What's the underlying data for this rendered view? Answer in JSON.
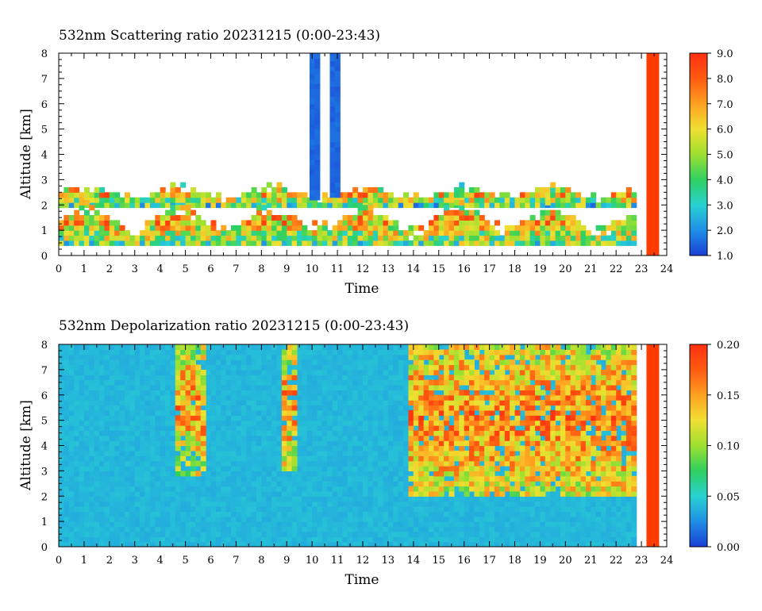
{
  "colors": {
    "scale": [
      "#1a3fd6",
      "#1f8fe6",
      "#28d2d2",
      "#2fd060",
      "#9ee030",
      "#f0e030",
      "#ffa020",
      "#ff5a10",
      "#ff3010"
    ],
    "background_fill": "#2f8fe6",
    "missing_data": "#ff3c00"
  },
  "chart_data": [
    {
      "type": "heatmap",
      "title": "532nm Scattering ratio  20231215 (0:00-23:43)",
      "xlabel": "Time",
      "ylabel": "Altitude [km]",
      "xlim": [
        0,
        24
      ],
      "ylim": [
        0,
        8
      ],
      "x_ticks": [
        "0",
        "1",
        "2",
        "3",
        "4",
        "5",
        "6",
        "7",
        "8",
        "9",
        "10",
        "11",
        "12",
        "13",
        "14",
        "15",
        "16",
        "17",
        "18",
        "19",
        "20",
        "21",
        "22",
        "23",
        "24"
      ],
      "y_ticks": [
        "0",
        "1",
        "2",
        "3",
        "4",
        "5",
        "6",
        "7",
        "8"
      ],
      "colorbar": {
        "min": 1.0,
        "max": 9.0,
        "ticks": [
          "1.0",
          "2.0",
          "3.0",
          "4.0",
          "5.0",
          "6.0",
          "7.0",
          "8.0",
          "9.0"
        ]
      },
      "features": [
        {
          "kind": "cloud_top_layer",
          "x_range": [
            0,
            22.8
          ],
          "altitude_km": [
            1.9,
            2.8
          ],
          "value_range": [
            1.5,
            9.0
          ]
        },
        {
          "kind": "boundary_layer",
          "x_range": [
            0,
            22.8
          ],
          "altitude_km": [
            0.4,
            2.2
          ],
          "value_range": [
            2.0,
            9.0
          ]
        },
        {
          "kind": "tall_column",
          "x_range": [
            9.9,
            10.3
          ],
          "altitude_km": [
            2.2,
            8.0
          ],
          "value": 1.5
        },
        {
          "kind": "tall_column",
          "x_range": [
            10.7,
            11.0
          ],
          "altitude_km": [
            2.3,
            8.0
          ],
          "value": 1.5
        }
      ],
      "missing_time_range": [
        23.2,
        23.7
      ]
    },
    {
      "type": "heatmap",
      "title": "532nm Depolarization ratio  20231215 (0:00-23:43)",
      "xlabel": "Time",
      "ylabel": "Altitude [km]",
      "xlim": [
        0,
        24
      ],
      "ylim": [
        0,
        8
      ],
      "x_ticks": [
        "0",
        "1",
        "2",
        "3",
        "4",
        "5",
        "6",
        "7",
        "8",
        "9",
        "10",
        "11",
        "12",
        "13",
        "14",
        "15",
        "16",
        "17",
        "18",
        "19",
        "20",
        "21",
        "22",
        "23",
        "24"
      ],
      "y_ticks": [
        "0",
        "1",
        "2",
        "3",
        "4",
        "5",
        "6",
        "7",
        "8"
      ],
      "colorbar": {
        "min": 0.0,
        "max": 0.2,
        "ticks": [
          "0.00",
          "0.05",
          "0.10",
          "0.15",
          "0.20"
        ]
      },
      "features": [
        {
          "kind": "background",
          "x_range": [
            0,
            22.8
          ],
          "altitude_km": [
            0,
            8
          ],
          "value": 0.04
        },
        {
          "kind": "high_depol_region",
          "x_range": [
            13.8,
            22.8
          ],
          "altitude_km": [
            2.0,
            8.0
          ],
          "value_range": [
            0.08,
            0.2
          ]
        },
        {
          "kind": "noisy_column",
          "x_range": [
            4.6,
            5.8
          ],
          "altitude_km": [
            2.8,
            8.0
          ],
          "value_range": [
            0.06,
            0.2
          ]
        },
        {
          "kind": "noisy_column",
          "x_range": [
            8.8,
            9.4
          ],
          "altitude_km": [
            3.0,
            8.0
          ],
          "value_range": [
            0.06,
            0.2
          ]
        }
      ],
      "missing_time_range": [
        23.2,
        23.7
      ]
    }
  ]
}
